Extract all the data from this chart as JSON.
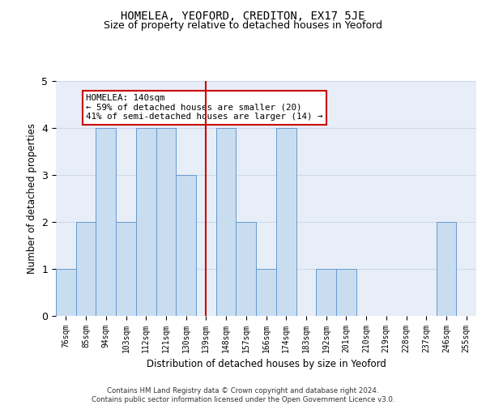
{
  "title": "HOMELEA, YEOFORD, CREDITON, EX17 5JE",
  "subtitle": "Size of property relative to detached houses in Yeoford",
  "xlabel": "Distribution of detached houses by size in Yeoford",
  "ylabel": "Number of detached properties",
  "categories": [
    "76sqm",
    "85sqm",
    "94sqm",
    "103sqm",
    "112sqm",
    "121sqm",
    "130sqm",
    "139sqm",
    "148sqm",
    "157sqm",
    "166sqm",
    "174sqm",
    "183sqm",
    "192sqm",
    "201sqm",
    "210sqm",
    "219sqm",
    "228sqm",
    "237sqm",
    "246sqm",
    "255sqm"
  ],
  "values": [
    1,
    2,
    4,
    2,
    4,
    4,
    3,
    0,
    4,
    2,
    1,
    4,
    0,
    1,
    1,
    0,
    0,
    0,
    0,
    2,
    0
  ],
  "bar_color": "#c9ddf0",
  "bar_edge_color": "#6699cc",
  "vline_index": 7,
  "vline_color": "#cc0000",
  "annotation_line1": "HOMELEA: 140sqm",
  "annotation_line2": "← 59% of detached houses are smaller (20)",
  "annotation_line3": "41% of semi-detached houses are larger (14) →",
  "annotation_box_color": "white",
  "annotation_box_edgecolor": "#cc0000",
  "ylim": [
    0,
    5
  ],
  "yticks": [
    0,
    1,
    2,
    3,
    4,
    5
  ],
  "grid_color": "#d0d8e8",
  "background_color": "#e8eef8",
  "footer_line1": "Contains HM Land Registry data © Crown copyright and database right 2024.",
  "footer_line2": "Contains public sector information licensed under the Open Government Licence v3.0.",
  "title_fontsize": 10,
  "subtitle_fontsize": 9,
  "tick_fontsize": 7,
  "ylabel_fontsize": 8.5,
  "xlabel_fontsize": 8.5
}
